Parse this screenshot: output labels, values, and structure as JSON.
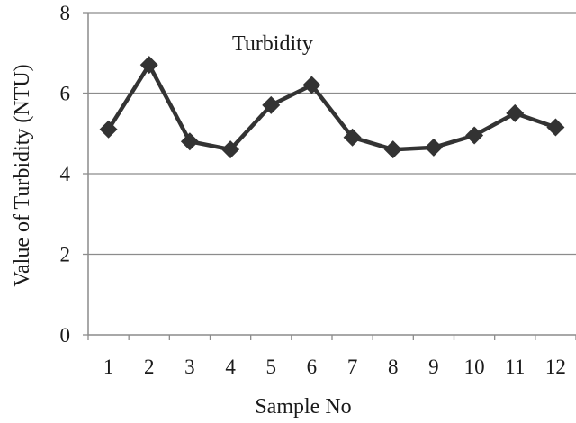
{
  "chart_data": {
    "type": "line",
    "title": "",
    "xlabel": "Sample No",
    "ylabel": "Value of Turbidity (NTU)",
    "categories": [
      "1",
      "2",
      "3",
      "4",
      "5",
      "6",
      "7",
      "8",
      "9",
      "10",
      "11",
      "12"
    ],
    "series": [
      {
        "name": "Turbidity",
        "values": [
          5.1,
          6.7,
          4.8,
          4.6,
          5.7,
          6.2,
          4.9,
          4.6,
          4.65,
          4.95,
          5.5,
          5.15
        ]
      }
    ],
    "ylim": [
      0,
      8
    ],
    "yticks": [
      "0",
      "2",
      "4",
      "6",
      "8"
    ],
    "grid": true,
    "legend": "inline-top-center",
    "colors": {
      "line": "#333333",
      "marker": "#333333",
      "grid": "#8c8c8c",
      "axis": "#8c8c8c"
    }
  }
}
